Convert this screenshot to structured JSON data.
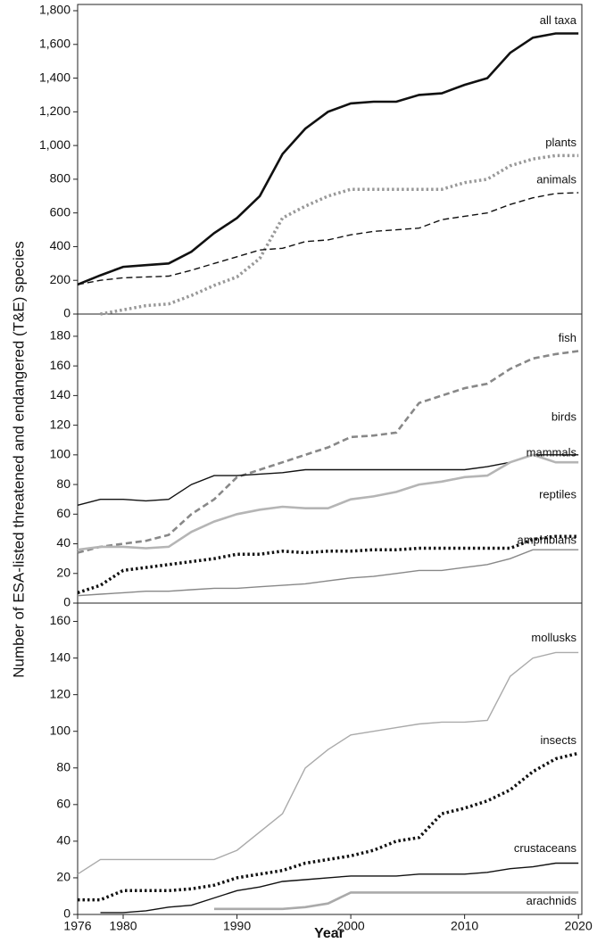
{
  "chart_data": [
    {
      "type": "line",
      "x": [
        1976,
        1978,
        1980,
        1982,
        1984,
        1986,
        1988,
        1990,
        1992,
        1994,
        1996,
        1998,
        2000,
        2002,
        2004,
        2006,
        2008,
        2010,
        2012,
        2014,
        2016,
        2018,
        2020
      ],
      "xlim": [
        1976,
        2020.3
      ],
      "ylim": [
        0,
        1800
      ],
      "yticks": [
        0,
        200,
        400,
        600,
        800,
        {
          "value": 1000,
          "label": "1,000"
        },
        {
          "value": 1200,
          "label": "1,200"
        },
        {
          "value": 1400,
          "label": "1,400"
        },
        {
          "value": 1600,
          "label": "1,600"
        },
        {
          "value": 1800,
          "label": "1,800"
        }
      ],
      "series": [
        {
          "name": "all taxa",
          "color": "#111111",
          "dash": "solid",
          "weight": "heavy",
          "values": [
            175,
            230,
            280,
            290,
            300,
            370,
            480,
            570,
            700,
            950,
            1100,
            1200,
            1250,
            1260,
            1260,
            1300,
            1310,
            1360,
            1400,
            1550,
            1640,
            1665,
            1665
          ]
        },
        {
          "name": "plants",
          "color": "#999999",
          "dash": "dotted",
          "weight": "heavy",
          "values": [
            null,
            0,
            25,
            50,
            60,
            110,
            170,
            220,
            330,
            570,
            640,
            700,
            740,
            740,
            740,
            740,
            740,
            780,
            800,
            880,
            920,
            940,
            940
          ]
        },
        {
          "name": "animals",
          "color": "#111111",
          "dash": "dashed",
          "weight": "light",
          "values": [
            175,
            200,
            215,
            220,
            225,
            260,
            300,
            340,
            380,
            390,
            430,
            440,
            470,
            490,
            500,
            510,
            560,
            580,
            600,
            650,
            690,
            715,
            720
          ]
        }
      ]
    },
    {
      "type": "line",
      "ylabel": "Number of ESA-listed threatened and endangered (T&E) species",
      "x": [
        1976,
        1978,
        1980,
        1982,
        1984,
        1986,
        1988,
        1990,
        1992,
        1994,
        1996,
        1998,
        2000,
        2002,
        2004,
        2006,
        2008,
        2010,
        2012,
        2014,
        2016,
        2018,
        2020
      ],
      "xlim": [
        1976,
        2020.3
      ],
      "ylim": [
        0,
        195
      ],
      "yticks": [
        0,
        20,
        40,
        60,
        80,
        100,
        120,
        140,
        160,
        180
      ],
      "series": [
        {
          "name": "fish",
          "color": "#888888",
          "dash": "dashed",
          "weight": "heavy",
          "values": [
            34,
            38,
            40,
            42,
            46,
            60,
            70,
            85,
            90,
            95,
            100,
            105,
            112,
            113,
            115,
            135,
            140,
            145,
            148,
            158,
            165,
            168,
            170
          ]
        },
        {
          "name": "birds",
          "color": "#111111",
          "dash": "solid",
          "weight": "light",
          "values": [
            66,
            70,
            70,
            69,
            70,
            80,
            86,
            86,
            87,
            88,
            90,
            90,
            90,
            90,
            90,
            90,
            90,
            90,
            92,
            95,
            100,
            100,
            100
          ]
        },
        {
          "name": "mammals",
          "color": "#b5b5b5",
          "dash": "solid",
          "weight": "heavy",
          "values": [
            36,
            38,
            38,
            37,
            38,
            48,
            55,
            60,
            63,
            65,
            64,
            64,
            70,
            72,
            75,
            80,
            82,
            85,
            86,
            95,
            100,
            95,
            95
          ]
        },
        {
          "name": "reptiles",
          "color": "#111111",
          "dash": "dotted",
          "weight": "heavy",
          "values": [
            7,
            12,
            22,
            24,
            26,
            28,
            30,
            33,
            33,
            35,
            34,
            35,
            35,
            36,
            36,
            37,
            37,
            37,
            37,
            37,
            43,
            45,
            45
          ]
        },
        {
          "name": "amphibians",
          "color": "#888888",
          "dash": "solid",
          "weight": "light",
          "values": [
            5,
            6,
            7,
            8,
            8,
            9,
            10,
            10,
            11,
            12,
            13,
            15,
            17,
            18,
            20,
            22,
            22,
            24,
            26,
            30,
            36,
            36,
            36
          ]
        }
      ]
    },
    {
      "type": "line",
      "xlabel": "Year",
      "x": [
        1976,
        1978,
        1980,
        1982,
        1984,
        1986,
        1988,
        1990,
        1992,
        1994,
        1996,
        1998,
        2000,
        2002,
        2004,
        2006,
        2008,
        2010,
        2012,
        2014,
        2016,
        2018,
        2020
      ],
      "xlim": [
        1976,
        2020.3
      ],
      "xticks": [
        1976,
        1980,
        1990,
        2000,
        2010,
        2020
      ],
      "ylim": [
        0,
        170
      ],
      "yticks": [
        0,
        20,
        40,
        60,
        80,
        100,
        120,
        140,
        160
      ],
      "series": [
        {
          "name": "mollusks",
          "color": "#aaaaaa",
          "dash": "solid",
          "weight": "light",
          "values": [
            22,
            30,
            30,
            30,
            30,
            30,
            30,
            35,
            45,
            55,
            80,
            90,
            98,
            100,
            102,
            104,
            105,
            105,
            106,
            130,
            140,
            143,
            143
          ]
        },
        {
          "name": "insects",
          "color": "#111111",
          "dash": "dotted",
          "weight": "heavy",
          "values": [
            8,
            8,
            13,
            13,
            13,
            14,
            16,
            20,
            22,
            24,
            28,
            30,
            32,
            35,
            40,
            42,
            55,
            58,
            62,
            68,
            78,
            85,
            88
          ]
        },
        {
          "name": "crustaceans",
          "color": "#111111",
          "dash": "solid",
          "weight": "light",
          "values": [
            null,
            1,
            1,
            2,
            4,
            5,
            9,
            13,
            15,
            18,
            19,
            20,
            21,
            21,
            21,
            22,
            22,
            22,
            23,
            25,
            26,
            28,
            28
          ]
        },
        {
          "name": "arachnids",
          "color": "#aaaaaa",
          "dash": "solid",
          "weight": "heavy",
          "values": [
            null,
            null,
            null,
            null,
            null,
            null,
            3,
            3,
            3,
            3,
            4,
            6,
            12,
            12,
            12,
            12,
            12,
            12,
            12,
            12,
            12,
            12,
            12
          ]
        }
      ]
    }
  ]
}
